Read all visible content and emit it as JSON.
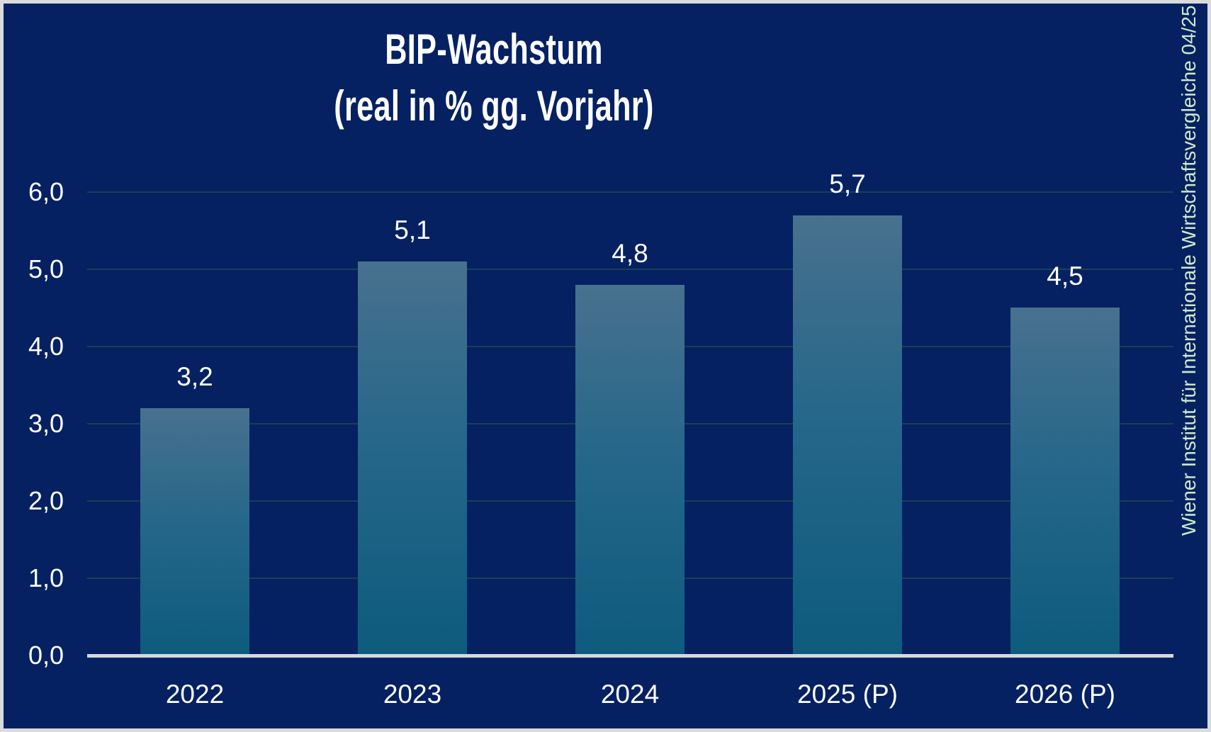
{
  "colors": {
    "background": "#052162",
    "frame_border": "#d9dbdd",
    "bar_gradient_top": "#48718e",
    "bar_gradient_mid": "#26678a",
    "bar_gradient_bottom": "#0d5b7d",
    "gridline": "#164156",
    "axis_line": "#d6d8da",
    "label_text": "#ffffff",
    "source_text": "#cfeacb"
  },
  "chart_data": {
    "type": "bar",
    "title_line1": "BIP-Wachstum",
    "title_line2": "(real in % gg. Vorjahr)",
    "categories": [
      "2022",
      "2023",
      "2024",
      "2025 (P)",
      "2026 (P)"
    ],
    "values": [
      3.2,
      5.1,
      4.8,
      5.7,
      4.5
    ],
    "value_labels": [
      "3,2",
      "5,1",
      "4,8",
      "5,7",
      "4,5"
    ],
    "y_ticks": [
      "0,0",
      "1,0",
      "2,0",
      "3,0",
      "4,0",
      "5,0",
      "6,0"
    ],
    "ylim": [
      0,
      6
    ],
    "grid": true,
    "legend": "none",
    "source_note": "Wiener Institut für Internationale Wirtschaftsvergleiche 04/25"
  }
}
